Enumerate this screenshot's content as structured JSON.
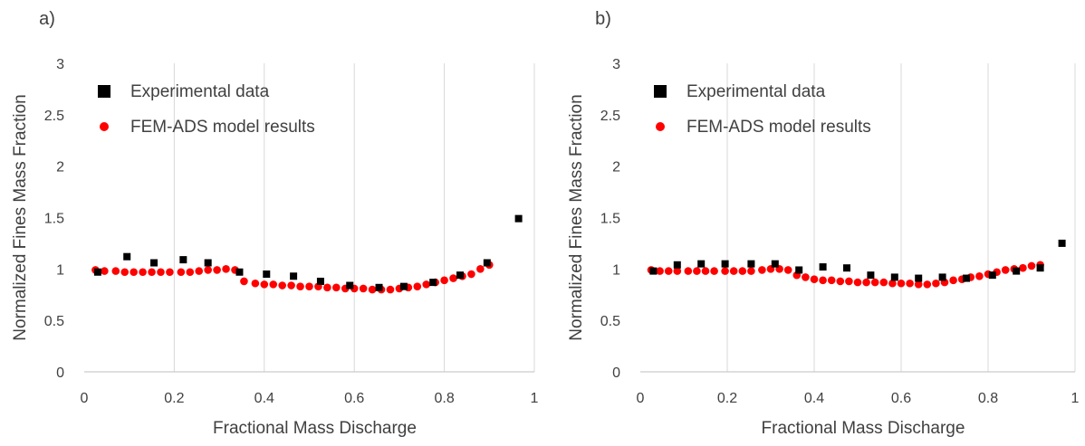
{
  "chart_data": [
    {
      "type": "scatter",
      "panel_label": "a)",
      "xlabel": "Fractional Mass Discharge",
      "ylabel": "Normalized Fines Mass Fraction",
      "xlim": [
        0,
        1
      ],
      "ylim": [
        0,
        3
      ],
      "x_ticks": [
        "0",
        "0.2",
        "0.4",
        "0.6",
        "0.8",
        "1"
      ],
      "y_ticks": [
        "0",
        "0.5",
        "1",
        "1.5",
        "2",
        "2.5",
        "3"
      ],
      "grid": "vertical",
      "legend_position": "top-left",
      "series": [
        {
          "name": "Experimental data",
          "marker": "square",
          "color": "#000000",
          "x": [
            0.03,
            0.095,
            0.155,
            0.22,
            0.275,
            0.345,
            0.405,
            0.465,
            0.525,
            0.59,
            0.655,
            0.71,
            0.775,
            0.835,
            0.895,
            0.965
          ],
          "y": [
            0.97,
            1.12,
            1.06,
            1.09,
            1.06,
            0.97,
            0.95,
            0.93,
            0.88,
            0.84,
            0.82,
            0.83,
            0.87,
            0.94,
            1.06,
            1.49
          ]
        },
        {
          "name": "FEM-ADS model results",
          "marker": "circle",
          "color": "#ff0000",
          "x": [
            0.025,
            0.045,
            0.07,
            0.09,
            0.11,
            0.13,
            0.15,
            0.17,
            0.19,
            0.215,
            0.235,
            0.255,
            0.275,
            0.295,
            0.315,
            0.335,
            0.355,
            0.38,
            0.4,
            0.42,
            0.44,
            0.46,
            0.48,
            0.5,
            0.52,
            0.54,
            0.56,
            0.58,
            0.6,
            0.62,
            0.64,
            0.66,
            0.68,
            0.7,
            0.72,
            0.74,
            0.76,
            0.78,
            0.8,
            0.82,
            0.84,
            0.86,
            0.88,
            0.9
          ],
          "y": [
            0.99,
            0.98,
            0.98,
            0.97,
            0.97,
            0.97,
            0.97,
            0.97,
            0.97,
            0.97,
            0.97,
            0.98,
            0.99,
            0.99,
            1.0,
            0.99,
            0.88,
            0.86,
            0.85,
            0.85,
            0.84,
            0.84,
            0.83,
            0.83,
            0.83,
            0.82,
            0.82,
            0.81,
            0.81,
            0.81,
            0.8,
            0.8,
            0.8,
            0.81,
            0.82,
            0.83,
            0.85,
            0.87,
            0.89,
            0.91,
            0.93,
            0.95,
            1.0,
            1.04
          ]
        }
      ]
    },
    {
      "type": "scatter",
      "panel_label": "b)",
      "xlabel": "Fractional Mass Discharge",
      "ylabel": "Normalized Fines Mass Fraction",
      "xlim": [
        0,
        1
      ],
      "ylim": [
        0,
        3
      ],
      "x_ticks": [
        "0",
        "0.2",
        "0.4",
        "0.6",
        "0.8",
        "1"
      ],
      "y_ticks": [
        "0",
        "0.5",
        "1",
        "1.5",
        "2",
        "2.5",
        "3"
      ],
      "grid": "vertical",
      "legend_position": "top-left",
      "series": [
        {
          "name": "Experimental data",
          "marker": "square",
          "color": "#000000",
          "x": [
            0.03,
            0.085,
            0.14,
            0.195,
            0.255,
            0.31,
            0.365,
            0.42,
            0.475,
            0.53,
            0.585,
            0.64,
            0.695,
            0.75,
            0.81,
            0.865,
            0.92,
            0.97
          ],
          "y": [
            0.98,
            1.04,
            1.05,
            1.05,
            1.05,
            1.05,
            0.99,
            1.02,
            1.01,
            0.94,
            0.92,
            0.91,
            0.92,
            0.91,
            0.94,
            0.98,
            1.01,
            1.25
          ]
        },
        {
          "name": "FEM-ADS model results",
          "marker": "circle",
          "color": "#ff0000",
          "x": [
            0.025,
            0.045,
            0.065,
            0.085,
            0.11,
            0.13,
            0.15,
            0.17,
            0.195,
            0.215,
            0.235,
            0.255,
            0.28,
            0.3,
            0.32,
            0.34,
            0.36,
            0.38,
            0.4,
            0.42,
            0.44,
            0.46,
            0.48,
            0.5,
            0.52,
            0.54,
            0.56,
            0.58,
            0.6,
            0.62,
            0.64,
            0.66,
            0.68,
            0.7,
            0.72,
            0.74,
            0.76,
            0.78,
            0.8,
            0.82,
            0.84,
            0.86,
            0.88,
            0.9,
            0.92
          ],
          "y": [
            0.99,
            0.98,
            0.98,
            0.98,
            0.98,
            0.98,
            0.98,
            0.98,
            0.98,
            0.98,
            0.98,
            0.98,
            0.99,
            1.0,
            1.0,
            0.99,
            0.94,
            0.92,
            0.9,
            0.89,
            0.89,
            0.88,
            0.88,
            0.87,
            0.87,
            0.87,
            0.87,
            0.86,
            0.86,
            0.86,
            0.85,
            0.85,
            0.86,
            0.87,
            0.89,
            0.9,
            0.92,
            0.93,
            0.95,
            0.97,
            0.99,
            1.0,
            1.01,
            1.03,
            1.04
          ]
        }
      ]
    }
  ]
}
